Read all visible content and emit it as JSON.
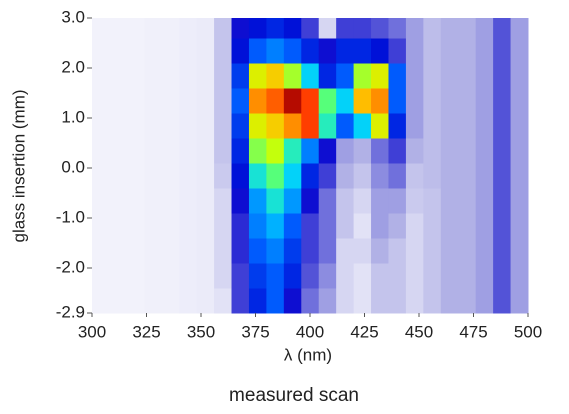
{
  "chart_data": {
    "type": "heatmap",
    "caption": "measured scan",
    "xlabel": "λ (nm)",
    "ylabel": "glass insertion (mm)",
    "xlim": [
      300,
      500
    ],
    "ylim": [
      -2.9,
      3.0
    ],
    "xticks": [
      300,
      325,
      350,
      375,
      400,
      425,
      450,
      475,
      500
    ],
    "yticks": [
      {
        "value": 3,
        "label": "3.0"
      },
      {
        "value": 2,
        "label": "2.0"
      },
      {
        "value": 1,
        "label": "1.0"
      },
      {
        "value": 0,
        "label": "0.0"
      },
      {
        "value": -1,
        "label": "-1.0"
      },
      {
        "value": -2,
        "label": "-2.0"
      },
      -2.9
    ],
    "zlim": [
      0,
      1
    ],
    "colorscale": [
      "#ffffff",
      "#e8e8f8",
      "#b0b0e6",
      "#5a5ad8",
      "#0000d0",
      "#0060ff",
      "#00d0ff",
      "#40ff90",
      "#d0ff00",
      "#ffc000",
      "#ff3000",
      "#a00000"
    ],
    "xbins": [
      300,
      308,
      316,
      324,
      332,
      340,
      348,
      356,
      364,
      372,
      380,
      388,
      396,
      404,
      412,
      420,
      428,
      436,
      444,
      452,
      460,
      468,
      476,
      484,
      492,
      500
    ],
    "ybins": [
      -2.9,
      -2.4,
      -1.9,
      -1.4,
      -0.9,
      -0.4,
      0.1,
      0.6,
      1.1,
      1.6,
      2.1,
      2.6,
      3.0
    ],
    "z": [
      [
        0.05,
        0.05,
        0.05,
        0.06,
        0.06,
        0.07,
        0.08,
        0.1,
        0.3,
        0.4,
        0.45,
        0.35,
        0.25,
        0.2,
        0.12,
        0.1,
        0.15,
        0.15,
        0.12,
        0.15,
        0.18,
        0.18,
        0.2,
        0.28,
        0.2
      ],
      [
        0.05,
        0.05,
        0.05,
        0.06,
        0.06,
        0.07,
        0.08,
        0.12,
        0.3,
        0.42,
        0.45,
        0.4,
        0.28,
        0.22,
        0.12,
        0.1,
        0.15,
        0.15,
        0.12,
        0.15,
        0.18,
        0.18,
        0.2,
        0.28,
        0.2
      ],
      [
        0.05,
        0.05,
        0.05,
        0.06,
        0.06,
        0.07,
        0.08,
        0.12,
        0.32,
        0.45,
        0.48,
        0.42,
        0.3,
        0.25,
        0.12,
        0.12,
        0.18,
        0.15,
        0.12,
        0.15,
        0.18,
        0.18,
        0.2,
        0.28,
        0.2
      ],
      [
        0.05,
        0.05,
        0.05,
        0.06,
        0.06,
        0.07,
        0.08,
        0.12,
        0.32,
        0.48,
        0.52,
        0.45,
        0.3,
        0.25,
        0.15,
        0.1,
        0.2,
        0.18,
        0.12,
        0.15,
        0.18,
        0.18,
        0.2,
        0.28,
        0.2
      ],
      [
        0.05,
        0.05,
        0.05,
        0.06,
        0.06,
        0.07,
        0.08,
        0.12,
        0.35,
        0.5,
        0.58,
        0.5,
        0.35,
        0.25,
        0.15,
        0.12,
        0.2,
        0.2,
        0.14,
        0.15,
        0.18,
        0.18,
        0.2,
        0.28,
        0.2
      ],
      [
        0.05,
        0.05,
        0.05,
        0.06,
        0.06,
        0.07,
        0.08,
        0.14,
        0.38,
        0.58,
        0.65,
        0.55,
        0.4,
        0.3,
        0.18,
        0.15,
        0.22,
        0.25,
        0.15,
        0.16,
        0.18,
        0.18,
        0.2,
        0.28,
        0.2
      ],
      [
        0.05,
        0.05,
        0.05,
        0.06,
        0.06,
        0.07,
        0.08,
        0.15,
        0.4,
        0.68,
        0.72,
        0.6,
        0.48,
        0.35,
        0.2,
        0.18,
        0.25,
        0.3,
        0.18,
        0.16,
        0.18,
        0.18,
        0.2,
        0.28,
        0.2
      ],
      [
        0.05,
        0.05,
        0.05,
        0.06,
        0.06,
        0.07,
        0.08,
        0.15,
        0.42,
        0.75,
        0.8,
        0.85,
        0.9,
        0.6,
        0.45,
        0.55,
        0.75,
        0.4,
        0.2,
        0.16,
        0.18,
        0.18,
        0.2,
        0.28,
        0.2
      ],
      [
        0.05,
        0.05,
        0.05,
        0.06,
        0.06,
        0.07,
        0.08,
        0.15,
        0.45,
        0.85,
        0.88,
        0.98,
        0.9,
        0.65,
        0.55,
        0.82,
        0.85,
        0.45,
        0.2,
        0.16,
        0.18,
        0.18,
        0.2,
        0.28,
        0.2
      ],
      [
        0.05,
        0.05,
        0.05,
        0.06,
        0.06,
        0.07,
        0.08,
        0.15,
        0.42,
        0.75,
        0.8,
        0.7,
        0.55,
        0.4,
        0.45,
        0.7,
        0.75,
        0.45,
        0.2,
        0.16,
        0.18,
        0.18,
        0.2,
        0.28,
        0.2
      ],
      [
        0.05,
        0.05,
        0.05,
        0.06,
        0.06,
        0.07,
        0.08,
        0.15,
        0.38,
        0.45,
        0.48,
        0.45,
        0.4,
        0.35,
        0.4,
        0.4,
        0.38,
        0.3,
        0.2,
        0.16,
        0.18,
        0.18,
        0.2,
        0.28,
        0.2
      ],
      [
        0.05,
        0.05,
        0.05,
        0.06,
        0.06,
        0.07,
        0.08,
        0.15,
        0.35,
        0.38,
        0.4,
        0.38,
        0.3,
        0.12,
        0.3,
        0.3,
        0.28,
        0.25,
        0.2,
        0.16,
        0.18,
        0.18,
        0.2,
        0.28,
        0.2
      ]
    ]
  }
}
